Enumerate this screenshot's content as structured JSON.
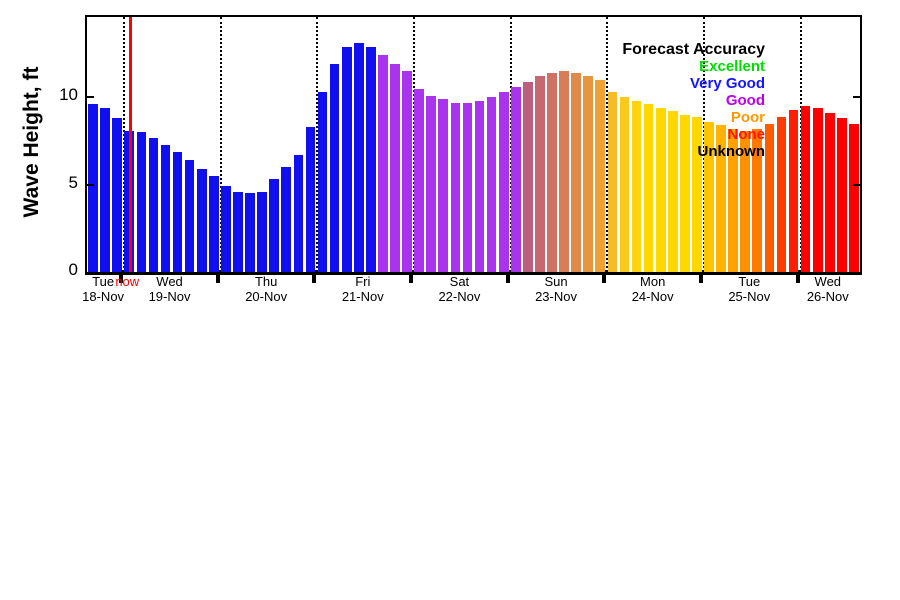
{
  "chart_data": {
    "type": "bar",
    "title": "",
    "ylabel": "Wave Height, ft",
    "ylim": [
      0,
      14.6
    ],
    "yticks": [
      {
        "value": 0,
        "label": "0"
      },
      {
        "value": 5,
        "label": "5"
      },
      {
        "value": 10,
        "label": "10"
      }
    ],
    "grid": "vertical dotted lines at day boundaries",
    "legend_position": "top-right",
    "now": {
      "label": "now",
      "color": "#ff0000",
      "bar_index": 3
    },
    "legend": {
      "title": "Forecast Accuracy",
      "items": [
        {
          "label": "Excellent",
          "color": "#00dd00"
        },
        {
          "label": "Very Good",
          "color": "#1414ff"
        },
        {
          "label": "Good",
          "color": "#bb00ee"
        },
        {
          "label": "Poor",
          "color": "#ff9900"
        },
        {
          "label": "None",
          "color": "#ff1400"
        },
        {
          "label": "Unknown",
          "color": "#000000"
        }
      ]
    },
    "days": [
      {
        "name": "Tue",
        "date": "18-Nov",
        "bars": [
          {
            "v": 9.6,
            "c": "#1010ee"
          },
          {
            "v": 9.4,
            "c": "#1010ee"
          },
          {
            "v": 8.8,
            "c": "#1010ee"
          }
        ]
      },
      {
        "name": "Wed",
        "date": "19-Nov",
        "bars": [
          {
            "v": 8.1,
            "c": "#1010ee"
          },
          {
            "v": 8.0,
            "c": "#1010ee"
          },
          {
            "v": 7.7,
            "c": "#1010ee"
          },
          {
            "v": 7.3,
            "c": "#1010ee"
          },
          {
            "v": 6.9,
            "c": "#1010ee"
          },
          {
            "v": 6.4,
            "c": "#1010ee"
          },
          {
            "v": 5.9,
            "c": "#1010ee"
          },
          {
            "v": 5.5,
            "c": "#1010ee"
          }
        ]
      },
      {
        "name": "Thu",
        "date": "20-Nov",
        "bars": [
          {
            "v": 4.9,
            "c": "#1010ee"
          },
          {
            "v": 4.6,
            "c": "#1010ee"
          },
          {
            "v": 4.5,
            "c": "#1010ee"
          },
          {
            "v": 4.6,
            "c": "#1010ee"
          },
          {
            "v": 5.3,
            "c": "#1010ee"
          },
          {
            "v": 6.0,
            "c": "#1010ee"
          },
          {
            "v": 6.7,
            "c": "#1010ee"
          },
          {
            "v": 8.3,
            "c": "#1010ee"
          }
        ]
      },
      {
        "name": "Fri",
        "date": "21-Nov",
        "bars": [
          {
            "v": 10.3,
            "c": "#1010ee"
          },
          {
            "v": 11.9,
            "c": "#1010ee"
          },
          {
            "v": 12.9,
            "c": "#1010ee"
          },
          {
            "v": 13.1,
            "c": "#1010ee"
          },
          {
            "v": 12.9,
            "c": "#1010ee"
          },
          {
            "v": 12.4,
            "c": "#aa33ee"
          },
          {
            "v": 11.9,
            "c": "#aa33ee"
          },
          {
            "v": 11.5,
            "c": "#aa33ee"
          }
        ]
      },
      {
        "name": "Sat",
        "date": "22-Nov",
        "bars": [
          {
            "v": 10.5,
            "c": "#aa33ee"
          },
          {
            "v": 10.1,
            "c": "#aa33ee"
          },
          {
            "v": 9.9,
            "c": "#aa33ee"
          },
          {
            "v": 9.7,
            "c": "#aa33ee"
          },
          {
            "v": 9.7,
            "c": "#aa33ee"
          },
          {
            "v": 9.8,
            "c": "#aa33ee"
          },
          {
            "v": 10.0,
            "c": "#aa33ee"
          },
          {
            "v": 10.3,
            "c": "#aa33ee"
          }
        ]
      },
      {
        "name": "Sun",
        "date": "23-Nov",
        "bars": [
          {
            "v": 10.6,
            "c": "#aa33ee"
          },
          {
            "v": 10.9,
            "c": "#bb5f80"
          },
          {
            "v": 11.2,
            "c": "#c66872"
          },
          {
            "v": 11.4,
            "c": "#cf7264"
          },
          {
            "v": 11.5,
            "c": "#d77d57"
          },
          {
            "v": 11.4,
            "c": "#df894a"
          },
          {
            "v": 11.2,
            "c": "#e7953e"
          },
          {
            "v": 11.0,
            "c": "#efa232"
          }
        ]
      },
      {
        "name": "Mon",
        "date": "24-Nov",
        "bars": [
          {
            "v": 10.3,
            "c": "#f5bc28"
          },
          {
            "v": 10.0,
            "c": "#fbc91a"
          },
          {
            "v": 9.8,
            "c": "#ffd40d"
          },
          {
            "v": 9.6,
            "c": "#ffd800"
          },
          {
            "v": 9.4,
            "c": "#ffd800"
          },
          {
            "v": 9.2,
            "c": "#ffd800"
          },
          {
            "v": 9.0,
            "c": "#ffd800"
          },
          {
            "v": 8.9,
            "c": "#ffd800"
          }
        ]
      },
      {
        "name": "Tue",
        "date": "25-Nov",
        "bars": [
          {
            "v": 8.6,
            "c": "#ffc400"
          },
          {
            "v": 8.4,
            "c": "#ffb300"
          },
          {
            "v": 8.2,
            "c": "#ffa200"
          },
          {
            "v": 8.1,
            "c": "#ff9100"
          },
          {
            "v": 8.2,
            "c": "#ff7a00"
          },
          {
            "v": 8.5,
            "c": "#ff5c00"
          },
          {
            "v": 8.9,
            "c": "#ff3d00"
          },
          {
            "v": 9.3,
            "c": "#ff1f00"
          }
        ]
      },
      {
        "name": "Wed",
        "date": "26-Nov",
        "bars": [
          {
            "v": 9.5,
            "c": "#ff0000"
          },
          {
            "v": 9.4,
            "c": "#ff0000"
          },
          {
            "v": 9.1,
            "c": "#ff0000"
          },
          {
            "v": 8.8,
            "c": "#ff0000"
          },
          {
            "v": 8.5,
            "c": "#ff0000"
          }
        ]
      }
    ]
  }
}
